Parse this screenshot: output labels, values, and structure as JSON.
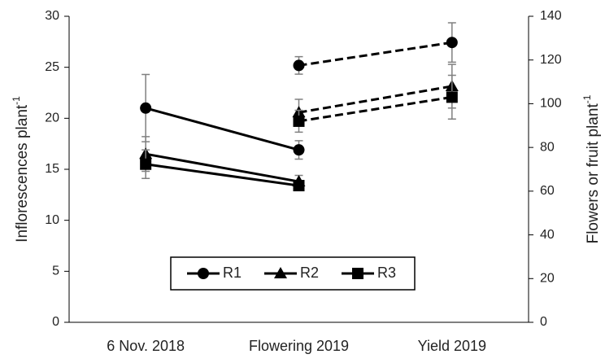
{
  "chart_data": {
    "type": "line",
    "categories": [
      "6 Nov. 2018",
      "Flowering 2019",
      "Yield 2019"
    ],
    "y_label": {
      "text": "Inflorescences plant",
      "sup": "-1"
    },
    "y2_label": {
      "text": "Flowers or fruit plant",
      "sup": "-1"
    },
    "ylim": [
      0,
      30
    ],
    "yticks": [
      0,
      5,
      10,
      15,
      20,
      25,
      30
    ],
    "y2lim": [
      0,
      140
    ],
    "y2ticks": [
      0,
      20,
      40,
      60,
      80,
      100,
      120,
      140
    ],
    "color": "#000000",
    "error_color": "#808080",
    "legend": "bottom-center",
    "series": [
      {
        "name": "R1",
        "marker": "circle",
        "values": [
          21,
          16.9,
          null
        ],
        "errors": [
          3.3,
          0.9,
          null
        ],
        "y2_values": [
          null,
          117.5,
          128
        ],
        "y2_errors": [
          null,
          4,
          9
        ]
      },
      {
        "name": "R2",
        "marker": "triangle",
        "values": [
          16.5,
          13.8,
          null
        ],
        "errors": [
          1.7,
          0.6,
          null
        ],
        "y2_values": [
          null,
          96,
          108
        ],
        "y2_errors": [
          null,
          6,
          10
        ]
      },
      {
        "name": "R3",
        "marker": "square",
        "values": [
          15.5,
          13.4,
          null
        ],
        "errors": [
          1.4,
          0.4,
          null
        ],
        "y2_values": [
          null,
          92,
          103
        ],
        "y2_errors": [
          null,
          5,
          10
        ]
      }
    ]
  }
}
